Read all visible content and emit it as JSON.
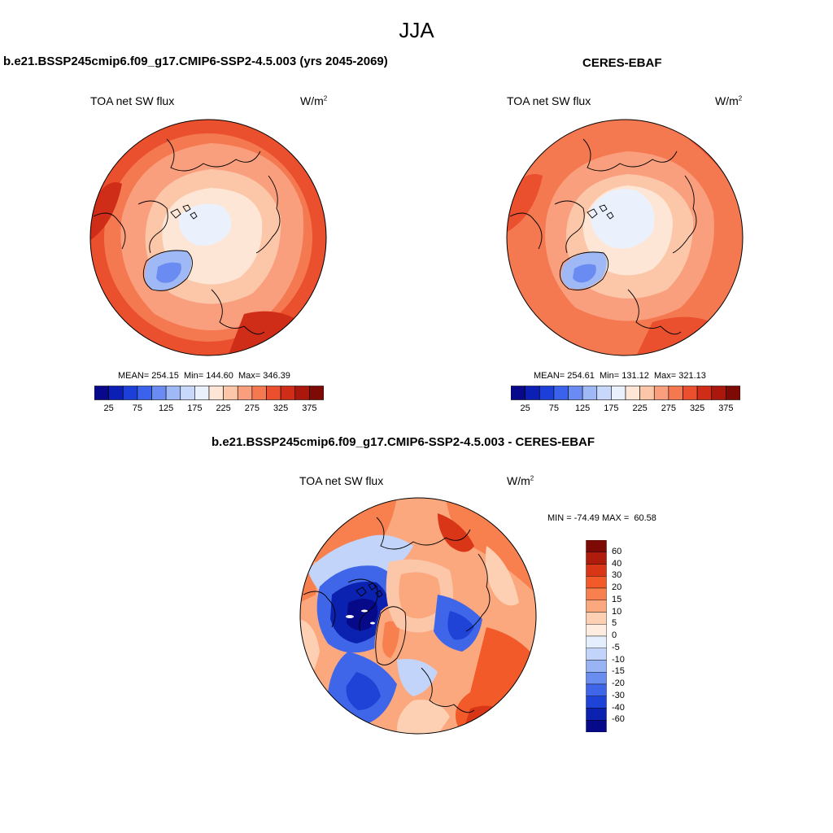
{
  "title": "JJA",
  "panels": [
    {
      "title": "b.e21.BSSP245cmip6.f09_g17.CMIP6-SSP2-4.5.003 (yrs 2045-2069)",
      "variable": "TOA net SW flux",
      "units": "W/m",
      "units_sup": "2",
      "stats": "MEAN= 254.15  Min= 144.60  Max= 346.39"
    },
    {
      "title": "CERES-EBAF",
      "variable": "TOA net SW flux",
      "units": "W/m",
      "units_sup": "2",
      "stats": "MEAN= 254.61  Min= 131.12  Max= 321.13"
    },
    {
      "title": "b.e21.BSSP245cmip6.f09_g17.CMIP6-SSP2-4.5.003 - CERES-EBAF",
      "variable": "TOA net SW flux",
      "units": "W/m",
      "units_sup": "2",
      "stats": "MIN = -74.49 MAX =  60.58"
    }
  ],
  "colorbar_abs": {
    "colors": [
      "#08088a",
      "#0b1fb5",
      "#1c3fd8",
      "#3a62ea",
      "#6a8cf2",
      "#9fb8f6",
      "#c8d8fa",
      "#eaf1fd",
      "#fde6d6",
      "#fcc6a9",
      "#fa9f7d",
      "#f57950",
      "#ea4f2e",
      "#cf2d17",
      "#ab170c",
      "#7e0a05"
    ],
    "ticks": [
      "25",
      "75",
      "125",
      "175",
      "225",
      "275",
      "325",
      "375"
    ]
  },
  "colorbar_diff": {
    "colors": [
      "#7e0a05",
      "#b01c0c",
      "#d93517",
      "#f25a2a",
      "#f8804f",
      "#fba87f",
      "#fdd0b3",
      "#fdecdf",
      "#e4eefd",
      "#c2d4fa",
      "#98b4f5",
      "#6a8df0",
      "#3f66e8",
      "#1e43d6",
      "#0b22b0",
      "#070a88"
    ],
    "ticks": [
      "60",
      "40",
      "30",
      "20",
      "15",
      "10",
      "5",
      "0",
      "-5",
      "-10",
      "-15",
      "-20",
      "-30",
      "-40",
      "-60"
    ]
  }
}
